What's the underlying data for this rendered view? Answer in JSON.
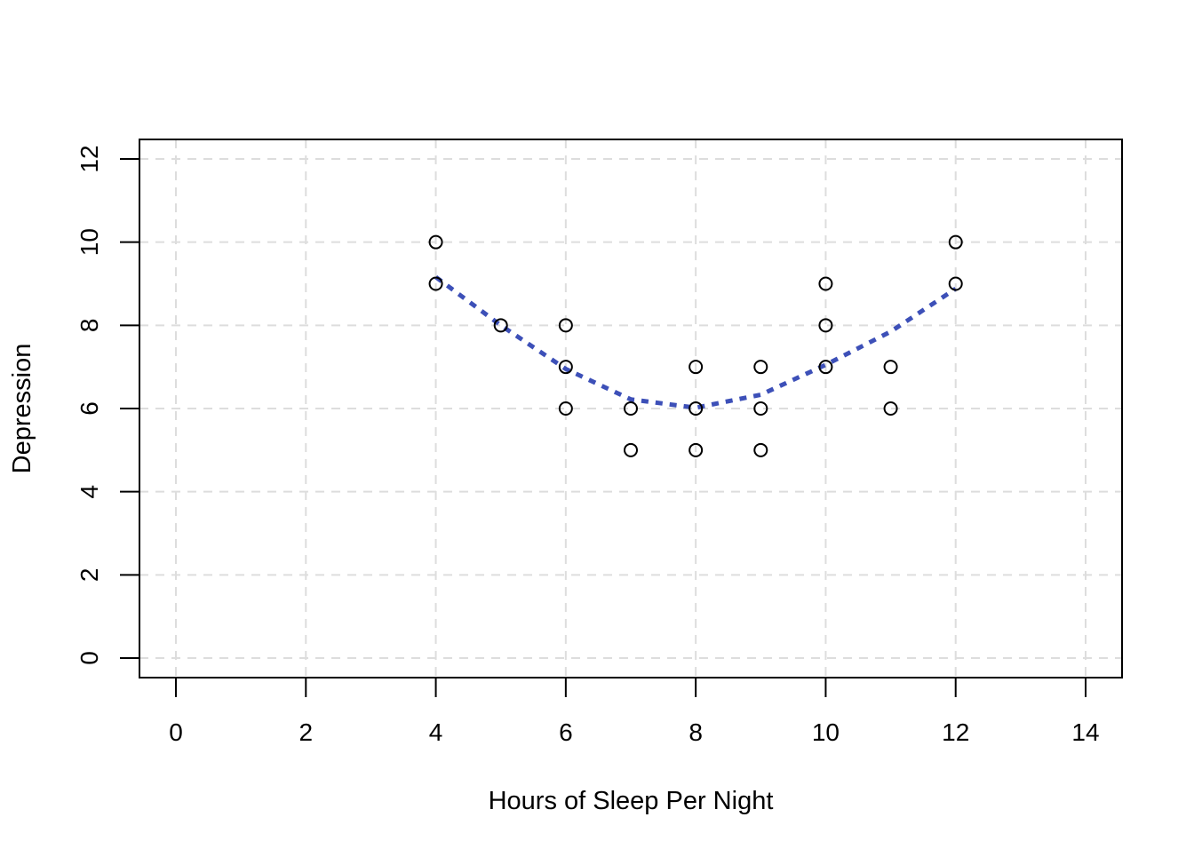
{
  "chart_data": {
    "type": "scatter",
    "xlabel": "Hours of Sleep Per Night",
    "ylabel": "Depression",
    "xlim": [
      0,
      14
    ],
    "ylim": [
      0,
      12
    ],
    "xticks": [
      0,
      2,
      4,
      6,
      8,
      10,
      12,
      14
    ],
    "yticks": [
      0,
      2,
      4,
      6,
      8,
      10,
      12
    ],
    "grid": true,
    "points": [
      {
        "x": 4,
        "y": 10
      },
      {
        "x": 4,
        "y": 9
      },
      {
        "x": 5,
        "y": 8
      },
      {
        "x": 6,
        "y": 8
      },
      {
        "x": 6,
        "y": 7
      },
      {
        "x": 6,
        "y": 6
      },
      {
        "x": 7,
        "y": 6
      },
      {
        "x": 7,
        "y": 5
      },
      {
        "x": 8,
        "y": 7
      },
      {
        "x": 8,
        "y": 6
      },
      {
        "x": 8,
        "y": 5
      },
      {
        "x": 9,
        "y": 7
      },
      {
        "x": 9,
        "y": 6
      },
      {
        "x": 9,
        "y": 5
      },
      {
        "x": 10,
        "y": 9
      },
      {
        "x": 10,
        "y": 8
      },
      {
        "x": 10,
        "y": 7
      },
      {
        "x": 11,
        "y": 7
      },
      {
        "x": 11,
        "y": 6
      },
      {
        "x": 12,
        "y": 10
      },
      {
        "x": 12,
        "y": 9
      }
    ],
    "fit_line": {
      "style": "dotted",
      "color": "#3d50b8",
      "x": [
        4,
        5,
        6,
        7,
        8,
        9,
        10,
        11,
        12
      ],
      "y": [
        9.16,
        8.0,
        6.95,
        6.22,
        6.02,
        6.33,
        7.05,
        7.85,
        8.88
      ]
    },
    "colors": {
      "points": "#000000",
      "grid": "#dddddd",
      "axes": "#000000"
    }
  }
}
